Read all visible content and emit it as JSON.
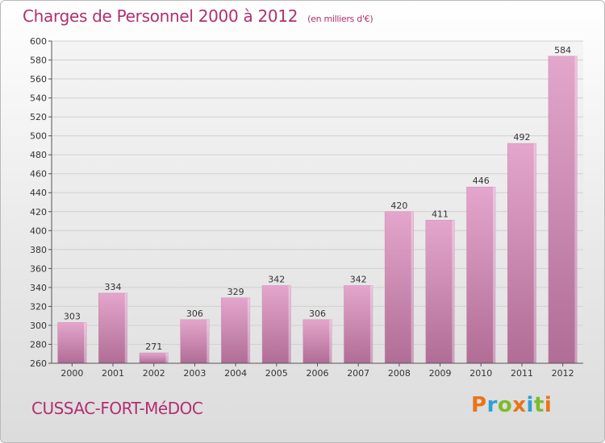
{
  "header": {
    "title": "Charges de Personnel 2000 à 2012",
    "subtitle": "(en milliers d'€)"
  },
  "footer": {
    "commune": "CUSSAC-FORT-MéDOC",
    "brand": "Proxiti",
    "brand_colors": [
      "#e8751a",
      "#2e9fd8",
      "#7dbb2a",
      "#e8751a",
      "#2e9fd8",
      "#7dbb2a",
      "#e8751a"
    ]
  },
  "chart_data": {
    "type": "bar",
    "categories": [
      "2000",
      "2001",
      "2002",
      "2003",
      "2004",
      "2005",
      "2006",
      "2007",
      "2008",
      "2009",
      "2010",
      "2011",
      "2012"
    ],
    "values": [
      303,
      334,
      271,
      306,
      329,
      342,
      306,
      342,
      420,
      411,
      446,
      492,
      584
    ],
    "yticks": [
      260,
      280,
      300,
      320,
      340,
      360,
      380,
      400,
      420,
      440,
      460,
      480,
      500,
      520,
      540,
      560,
      580,
      600
    ],
    "ylim": [
      260,
      600
    ],
    "bar_color_top": "#e4a6cc",
    "bar_color_bottom": "#b06d96",
    "grid": true
  }
}
